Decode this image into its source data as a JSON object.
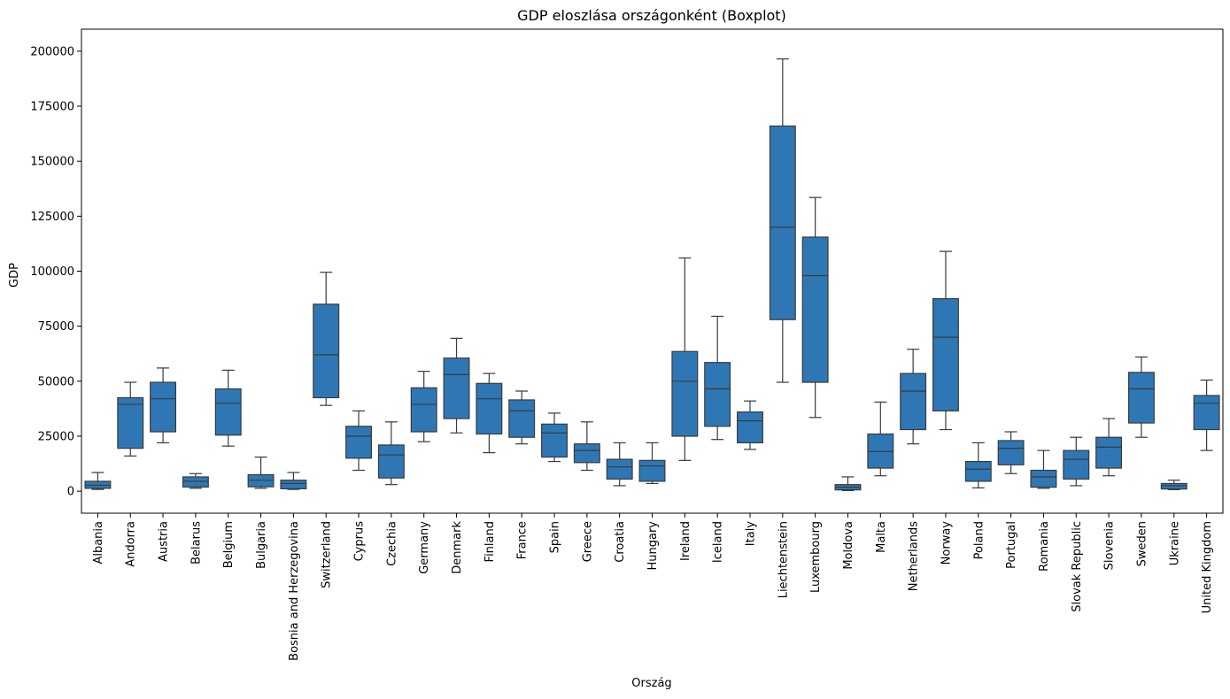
{
  "chart_data": {
    "type": "boxplot",
    "title": "GDP eloszlása országonként (Boxplot)",
    "xlabel": "Ország",
    "ylabel": "GDP",
    "ylim": [
      -10000,
      210000
    ],
    "yticks": [
      0,
      25000,
      50000,
      75000,
      100000,
      125000,
      150000,
      175000,
      200000
    ],
    "box_color": "#2f77b4",
    "line_color": "#3a3a3a",
    "grid": false,
    "legend": "none",
    "categories": [
      "Albania",
      "Andorra",
      "Austria",
      "Belarus",
      "Belgium",
      "Bulgaria",
      "Bosnia and Herzegovina",
      "Switzerland",
      "Cyprus",
      "Czechia",
      "Germany",
      "Denmark",
      "Finland",
      "France",
      "Spain",
      "Greece",
      "Croatia",
      "Hungary",
      "Ireland",
      "Iceland",
      "Italy",
      "Liechtenstein",
      "Luxembourg",
      "Moldova",
      "Malta",
      "Netherlands",
      "Norway",
      "Poland",
      "Portugal",
      "Romania",
      "Slovak Republic",
      "Slovenia",
      "Sweden",
      "Ukraine",
      "United Kingdom"
    ],
    "boxes": [
      {
        "min": 800,
        "q1": 1300,
        "median": 2700,
        "q3": 4500,
        "max": 8500
      },
      {
        "min": 16000,
        "q1": 19500,
        "median": 39500,
        "q3": 42500,
        "max": 49500
      },
      {
        "min": 22000,
        "q1": 27000,
        "median": 42000,
        "q3": 49500,
        "max": 56000
      },
      {
        "min": 1300,
        "q1": 1900,
        "median": 4500,
        "q3": 6500,
        "max": 8000
      },
      {
        "min": 20500,
        "q1": 25500,
        "median": 40000,
        "q3": 46500,
        "max": 55000
      },
      {
        "min": 1300,
        "q1": 2000,
        "median": 5000,
        "q3": 7500,
        "max": 15500
      },
      {
        "min": 800,
        "q1": 1100,
        "median": 3500,
        "q3": 5000,
        "max": 8500
      },
      {
        "min": 39000,
        "q1": 42500,
        "median": 62000,
        "q3": 85000,
        "max": 99500
      },
      {
        "min": 9500,
        "q1": 15000,
        "median": 25000,
        "q3": 29500,
        "max": 36500
      },
      {
        "min": 3000,
        "q1": 6000,
        "median": 16500,
        "q3": 21000,
        "max": 31500
      },
      {
        "min": 22500,
        "q1": 27000,
        "median": 39500,
        "q3": 47000,
        "max": 54500
      },
      {
        "min": 26500,
        "q1": 33000,
        "median": 53000,
        "q3": 60500,
        "max": 69500
      },
      {
        "min": 17500,
        "q1": 26000,
        "median": 42000,
        "q3": 49000,
        "max": 53500
      },
      {
        "min": 21500,
        "q1": 24500,
        "median": 36500,
        "q3": 41500,
        "max": 45500
      },
      {
        "min": 13500,
        "q1": 15500,
        "median": 26500,
        "q3": 30500,
        "max": 35500
      },
      {
        "min": 9500,
        "q1": 13000,
        "median": 18500,
        "q3": 21500,
        "max": 31500
      },
      {
        "min": 2500,
        "q1": 5500,
        "median": 11000,
        "q3": 14500,
        "max": 22000
      },
      {
        "min": 3500,
        "q1": 4500,
        "median": 11500,
        "q3": 14000,
        "max": 22000
      },
      {
        "min": 14000,
        "q1": 25000,
        "median": 50000,
        "q3": 63500,
        "max": 106000
      },
      {
        "min": 23500,
        "q1": 29500,
        "median": 46500,
        "q3": 58500,
        "max": 79500
      },
      {
        "min": 19000,
        "q1": 22000,
        "median": 32000,
        "q3": 36000,
        "max": 41000
      },
      {
        "min": 49500,
        "q1": 78000,
        "median": 120000,
        "q3": 166000,
        "max": 196500
      },
      {
        "min": 33500,
        "q1": 49500,
        "median": 98000,
        "q3": 115500,
        "max": 133500
      },
      {
        "min": 300,
        "q1": 600,
        "median": 1800,
        "q3": 3000,
        "max": 6500
      },
      {
        "min": 7000,
        "q1": 10500,
        "median": 18000,
        "q3": 26000,
        "max": 40500
      },
      {
        "min": 21500,
        "q1": 28000,
        "median": 45500,
        "q3": 53500,
        "max": 64500
      },
      {
        "min": 28000,
        "q1": 36500,
        "median": 70000,
        "q3": 87500,
        "max": 109000
      },
      {
        "min": 1500,
        "q1": 4500,
        "median": 10000,
        "q3": 13500,
        "max": 22000
      },
      {
        "min": 8000,
        "q1": 12000,
        "median": 19500,
        "q3": 23000,
        "max": 27000
      },
      {
        "min": 1300,
        "q1": 1800,
        "median": 6500,
        "q3": 9500,
        "max": 18500
      },
      {
        "min": 2500,
        "q1": 5500,
        "median": 14500,
        "q3": 18500,
        "max": 24500
      },
      {
        "min": 7000,
        "q1": 10500,
        "median": 20000,
        "q3": 24500,
        "max": 33000
      },
      {
        "min": 24500,
        "q1": 31000,
        "median": 46500,
        "q3": 54000,
        "max": 61000
      },
      {
        "min": 700,
        "q1": 1000,
        "median": 2500,
        "q3": 3500,
        "max": 5000
      },
      {
        "min": 18500,
        "q1": 28000,
        "median": 40000,
        "q3": 43500,
        "max": 50500
      }
    ]
  }
}
